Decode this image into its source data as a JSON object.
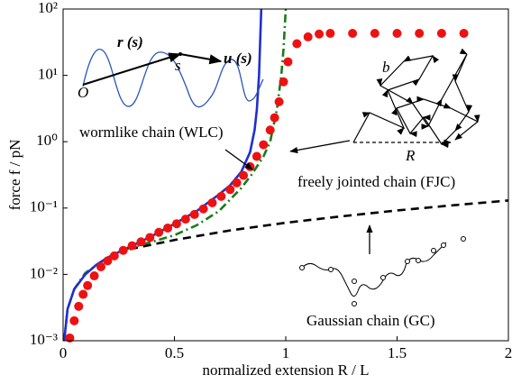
{
  "chart_data": {
    "type": "line",
    "xlabel": "normalized extension R / L",
    "ylabel": "force f / pN",
    "xlim": [
      0,
      2
    ],
    "xticks": [
      0,
      0.5,
      1,
      1.5,
      2
    ],
    "ylim": [
      0.001,
      100
    ],
    "log_y": true,
    "yticks": [
      {
        "value": 0.001,
        "label": "10⁻³"
      },
      {
        "value": 0.01,
        "label": "10⁻²"
      },
      {
        "value": 0.1,
        "label": "10⁻¹"
      },
      {
        "value": 1,
        "label": "10⁰"
      },
      {
        "value": 10,
        "label": "10¹"
      },
      {
        "value": 100,
        "label": "10²"
      }
    ],
    "series": [
      {
        "name": "Gaussian chain (GC)",
        "color": "#000000",
        "style": "dashed",
        "x": [
          0.3,
          0.5,
          0.75,
          1,
          1.25,
          1.5,
          1.75,
          2
        ],
        "values": [
          0.024,
          0.033,
          0.046,
          0.06,
          0.075,
          0.092,
          0.11,
          0.13
        ]
      },
      {
        "name": "freely jointed chain (FJC)",
        "color": "#1a7a1a",
        "style": "dashdot",
        "x": [
          0.005,
          0.02,
          0.05,
          0.1,
          0.2,
          0.3,
          0.4,
          0.5,
          0.6,
          0.7,
          0.8,
          0.85,
          0.9,
          0.93,
          0.96,
          0.98,
          0.99,
          1.0
        ],
        "values": [
          0.001,
          0.003,
          0.006,
          0.0105,
          0.018,
          0.025,
          0.031,
          0.039,
          0.055,
          0.09,
          0.2,
          0.33,
          0.6,
          1.0,
          3,
          10,
          25,
          100
        ]
      },
      {
        "name": "wormlike chain (WLC)",
        "color": "#1f2fd0",
        "style": "solid",
        "x": [
          0.005,
          0.02,
          0.05,
          0.1,
          0.15,
          0.2,
          0.3,
          0.4,
          0.5,
          0.6,
          0.7,
          0.75,
          0.8,
          0.84,
          0.86,
          0.87,
          0.88,
          0.89
        ],
        "values": [
          0.001,
          0.003,
          0.006,
          0.01,
          0.014,
          0.018,
          0.026,
          0.038,
          0.058,
          0.09,
          0.16,
          0.22,
          0.35,
          0.7,
          1.5,
          3,
          10,
          100
        ]
      },
      {
        "color": "#ee1111",
        "style": "markers",
        "x": [
          0.03,
          0.05,
          0.07,
          0.09,
          0.11,
          0.14,
          0.17,
          0.2,
          0.23,
          0.27,
          0.31,
          0.35,
          0.39,
          0.43,
          0.47,
          0.51,
          0.55,
          0.59,
          0.63,
          0.67,
          0.71,
          0.75,
          0.78,
          0.81,
          0.84,
          0.87,
          0.9,
          0.93,
          0.95,
          0.97,
          0.99,
          1.01,
          1.05,
          1.1,
          1.15,
          1.2,
          1.3,
          1.4,
          1.5,
          1.6,
          1.7,
          1.8
        ],
        "values": [
          0.0011,
          0.002,
          0.0033,
          0.005,
          0.0068,
          0.0095,
          0.013,
          0.016,
          0.019,
          0.023,
          0.027,
          0.031,
          0.036,
          0.043,
          0.05,
          0.058,
          0.068,
          0.08,
          0.097,
          0.12,
          0.15,
          0.19,
          0.24,
          0.31,
          0.42,
          0.6,
          0.9,
          1.5,
          2.3,
          4,
          8,
          16,
          30,
          38,
          42,
          43,
          43,
          43,
          43,
          43,
          43,
          43
        ]
      }
    ],
    "annotations": {
      "origin": "O",
      "position_vector": "r (s)",
      "arc_length": "s",
      "tangent": "u (s)",
      "bond": "b",
      "end_to_end": "R"
    }
  }
}
